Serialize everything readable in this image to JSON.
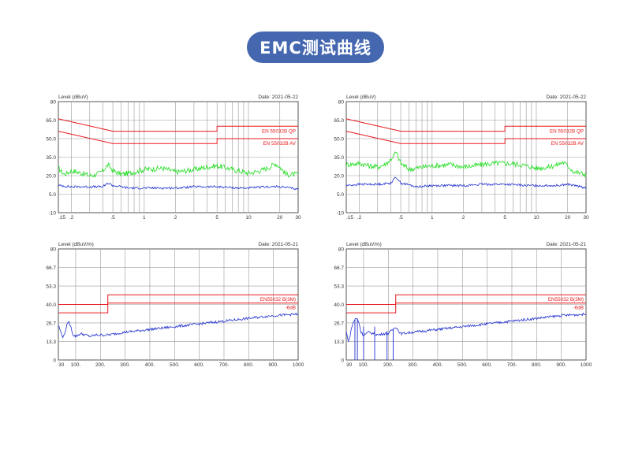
{
  "page": {
    "title": "EMC测试曲线"
  },
  "colors": {
    "title_bg": "#4467b0",
    "limit": "#e8191f",
    "qp_trace": "#22dd22",
    "av_trace": "#1f2fd0",
    "grid": "#999999"
  },
  "chart_data": [
    {
      "type": "line",
      "ylabel": "Level (dBuV)",
      "date": "Date: 2021-05-22",
      "xscale": "log",
      "xlim": [
        0.15,
        30
      ],
      "ylim": [
        -10,
        80
      ],
      "yticks": [
        -10,
        5.0,
        20.0,
        35.0,
        50.0,
        65.0,
        80
      ],
      "yticklabels": [
        "-10",
        "5.0",
        "20.0",
        "35.0",
        "50.0",
        "65.0",
        "80"
      ],
      "xticks": [
        0.15,
        0.2,
        0.5,
        1,
        2,
        5,
        10,
        20,
        30
      ],
      "xticklabels": [
        ".15",
        ".2",
        ".5",
        "1",
        "2",
        "5",
        "10",
        "20",
        "30"
      ],
      "limits": [
        {
          "name": "EN 55032B QP",
          "points": [
            [
              0.15,
              66
            ],
            [
              0.5,
              56
            ],
            [
              5,
              56
            ],
            [
              5,
              60
            ],
            [
              30,
              60
            ]
          ]
        },
        {
          "name": "EN 55032B AV",
          "points": [
            [
              0.15,
              56
            ],
            [
              0.5,
              46
            ],
            [
              5,
              46
            ],
            [
              5,
              50
            ],
            [
              30,
              50
            ]
          ]
        }
      ],
      "series": [
        {
          "kind": "qp",
          "points": [
            [
              0.15,
              26
            ],
            [
              0.17,
              21
            ],
            [
              0.2,
              24
            ],
            [
              0.25,
              22
            ],
            [
              0.3,
              20
            ],
            [
              0.35,
              21
            ],
            [
              0.4,
              24
            ],
            [
              0.45,
              29
            ],
            [
              0.5,
              24
            ],
            [
              0.6,
              21
            ],
            [
              0.8,
              23
            ],
            [
              1,
              25
            ],
            [
              1.5,
              26
            ],
            [
              2,
              23
            ],
            [
              3,
              25
            ],
            [
              4,
              27
            ],
            [
              5,
              28
            ],
            [
              7,
              25
            ],
            [
              10,
              22
            ],
            [
              13,
              24
            ],
            [
              16,
              27
            ],
            [
              18,
              30
            ],
            [
              20,
              27
            ],
            [
              23,
              21
            ],
            [
              30,
              21
            ]
          ]
        },
        {
          "kind": "av",
          "points": [
            [
              0.15,
              12
            ],
            [
              0.2,
              11
            ],
            [
              0.3,
              11
            ],
            [
              0.4,
              11
            ],
            [
              0.45,
              14
            ],
            [
              0.5,
              12
            ],
            [
              0.7,
              10
            ],
            [
              1,
              10
            ],
            [
              2,
              10
            ],
            [
              3,
              11
            ],
            [
              5,
              11
            ],
            [
              8,
              10
            ],
            [
              10,
              10
            ],
            [
              15,
              11
            ],
            [
              20,
              11
            ],
            [
              30,
              9
            ]
          ]
        }
      ]
    },
    {
      "type": "line",
      "ylabel": "Level (dBuV)",
      "date": "Date: 2021-05-22",
      "xscale": "log",
      "xlim": [
        0.15,
        30
      ],
      "ylim": [
        -10,
        80
      ],
      "yticks": [
        -10,
        5.0,
        20.0,
        35.0,
        50.0,
        65.0,
        80
      ],
      "yticklabels": [
        "-10",
        "5.0",
        "20.0",
        "35.0",
        "50.0",
        "65.0",
        "80"
      ],
      "xticks": [
        0.15,
        0.2,
        0.5,
        1,
        2,
        5,
        10,
        20,
        30
      ],
      "xticklabels": [
        ".15",
        ".2",
        ".5",
        "1",
        "2",
        "5",
        "10",
        "20",
        "30"
      ],
      "limits": [
        {
          "name": "EN 55032B QP",
          "points": [
            [
              0.15,
              66
            ],
            [
              0.5,
              56
            ],
            [
              5,
              56
            ],
            [
              5,
              60
            ],
            [
              30,
              60
            ]
          ]
        },
        {
          "name": "EN 55032B AV",
          "points": [
            [
              0.15,
              56
            ],
            [
              0.5,
              46
            ],
            [
              5,
              46
            ],
            [
              5,
              50
            ],
            [
              30,
              50
            ]
          ]
        }
      ],
      "series": [
        {
          "kind": "qp",
          "points": [
            [
              0.15,
              29
            ],
            [
              0.2,
              30
            ],
            [
              0.25,
              28
            ],
            [
              0.3,
              27
            ],
            [
              0.35,
              29
            ],
            [
              0.4,
              33
            ],
            [
              0.45,
              39
            ],
            [
              0.5,
              30
            ],
            [
              0.6,
              25
            ],
            [
              0.8,
              27
            ],
            [
              1,
              28
            ],
            [
              1.5,
              29
            ],
            [
              2,
              27
            ],
            [
              3,
              29
            ],
            [
              4,
              30
            ],
            [
              5,
              30
            ],
            [
              7,
              29
            ],
            [
              10,
              26
            ],
            [
              13,
              27
            ],
            [
              16,
              29
            ],
            [
              18,
              31
            ],
            [
              20,
              28
            ],
            [
              23,
              23
            ],
            [
              30,
              21
            ]
          ]
        },
        {
          "kind": "av",
          "points": [
            [
              0.15,
              12
            ],
            [
              0.2,
              13
            ],
            [
              0.3,
              13
            ],
            [
              0.4,
              14
            ],
            [
              0.45,
              19
            ],
            [
              0.5,
              14
            ],
            [
              0.7,
              11
            ],
            [
              1,
              12
            ],
            [
              2,
              12
            ],
            [
              3,
              13
            ],
            [
              5,
              13
            ],
            [
              8,
              12
            ],
            [
              10,
              12
            ],
            [
              15,
              12
            ],
            [
              20,
              13
            ],
            [
              30,
              10
            ]
          ]
        }
      ]
    },
    {
      "type": "line",
      "ylabel": "Level (dBuV/m)",
      "date": "Date: 2021-05-21",
      "xscale": "linear",
      "xlim": [
        30,
        1000
      ],
      "ylim": [
        0,
        80
      ],
      "yticks": [
        0,
        13.3,
        26.7,
        40.0,
        53.3,
        66.7,
        80
      ],
      "yticklabels": [
        "0",
        "13.3",
        "26.7",
        "40.0",
        "53.3",
        "66.7",
        "80"
      ],
      "xticks": [
        30,
        100,
        200,
        300,
        400,
        500,
        600,
        700,
        800,
        900,
        1000
      ],
      "xticklabels": [
        "30",
        "100.",
        "200.",
        "300.",
        "400.",
        "500.",
        "600.",
        "700.",
        "800.",
        "900.",
        "1000"
      ],
      "limits": [
        {
          "name": "EN55032 B(3M)",
          "points": [
            [
              30,
              40
            ],
            [
              230,
              40
            ],
            [
              230,
              47
            ],
            [
              1000,
              47
            ]
          ]
        },
        {
          "name": "-6dB",
          "points": [
            [
              30,
              34
            ],
            [
              230,
              34
            ],
            [
              230,
              41
            ],
            [
              1000,
              41
            ]
          ]
        }
      ],
      "series": [
        {
          "kind": "av",
          "points": [
            [
              30,
              25
            ],
            [
              40,
              20
            ],
            [
              50,
              16
            ],
            [
              60,
              22
            ],
            [
              70,
              28
            ],
            [
              80,
              24
            ],
            [
              90,
              18
            ],
            [
              100,
              17
            ],
            [
              120,
              19
            ],
            [
              140,
              18
            ],
            [
              160,
              17
            ],
            [
              180,
              18
            ],
            [
              200,
              18
            ],
            [
              230,
              18
            ],
            [
              300,
              20
            ],
            [
              400,
              22
            ],
            [
              500,
              24
            ],
            [
              600,
              26
            ],
            [
              700,
              28
            ],
            [
              800,
              30
            ],
            [
              900,
              32
            ],
            [
              1000,
              33
            ]
          ]
        }
      ]
    },
    {
      "type": "line",
      "ylabel": "Level (dBuV/m)",
      "date": "Date: 2021-05-21",
      "xscale": "linear",
      "xlim": [
        30,
        1000
      ],
      "ylim": [
        0,
        80
      ],
      "yticks": [
        0,
        13.3,
        26.7,
        40.0,
        53.3,
        66.7,
        80
      ],
      "yticklabels": [
        "0",
        "13.3",
        "26.7",
        "40.0",
        "53.3",
        "66.7",
        "80"
      ],
      "xticks": [
        30,
        100,
        200,
        300,
        400,
        500,
        600,
        700,
        800,
        900,
        1000
      ],
      "xticklabels": [
        "30",
        "100.",
        "200.",
        "300.",
        "400.",
        "500.",
        "600.",
        "700.",
        "800.",
        "900.",
        "1000"
      ],
      "limits": [
        {
          "name": "EN55032 B(3M)",
          "points": [
            [
              30,
              40
            ],
            [
              230,
              40
            ],
            [
              230,
              47
            ],
            [
              1000,
              47
            ]
          ]
        },
        {
          "name": "-6dB",
          "points": [
            [
              30,
              34
            ],
            [
              230,
              34
            ],
            [
              230,
              41
            ],
            [
              1000,
              41
            ]
          ]
        }
      ],
      "series": [
        {
          "kind": "av",
          "points": [
            [
              30,
              20
            ],
            [
              40,
              13
            ],
            [
              50,
              22
            ],
            [
              60,
              28
            ],
            [
              70,
              30
            ],
            [
              80,
              28
            ],
            [
              90,
              20
            ],
            [
              100,
              18
            ],
            [
              120,
              20
            ],
            [
              140,
              19
            ],
            [
              160,
              18
            ],
            [
              180,
              19
            ],
            [
              200,
              19
            ],
            [
              230,
              24
            ],
            [
              250,
              19
            ],
            [
              300,
              20
            ],
            [
              400,
              22
            ],
            [
              500,
              24
            ],
            [
              600,
              26
            ],
            [
              700,
              28
            ],
            [
              800,
              30
            ],
            [
              900,
              32
            ],
            [
              1000,
              33
            ]
          ]
        }
      ],
      "spikes": [
        [
          65,
          29
        ],
        [
          75,
          30
        ],
        [
          100,
          24
        ],
        [
          145,
          24
        ],
        [
          195,
          21
        ],
        [
          220,
          22
        ]
      ]
    }
  ]
}
